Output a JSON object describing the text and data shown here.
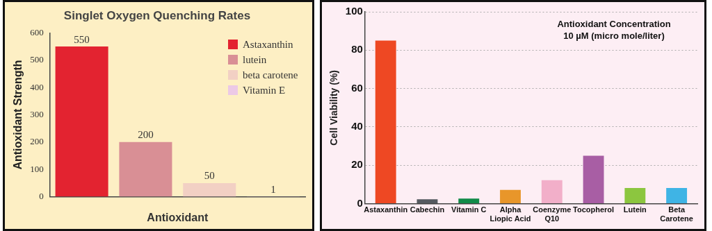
{
  "chart_data": [
    {
      "type": "bar",
      "title": "Singlet Oxygen Quenching Rates",
      "xlabel": "Antioxidant",
      "ylabel": "Antioxidant Strength",
      "categories": [
        null,
        null,
        null,
        null
      ],
      "series": [
        {
          "name": "Astaxanthin",
          "color": "#e32330",
          "values": [
            550,
            null,
            null,
            null
          ]
        },
        {
          "name": "lutein",
          "color": "#d98f95",
          "values": [
            null,
            200,
            null,
            null
          ]
        },
        {
          "name": "beta carotene",
          "color": "#f2d0c4",
          "values": [
            null,
            null,
            50,
            null
          ]
        },
        {
          "name": "Vitamin E",
          "color": "#ecc9e6",
          "values": [
            null,
            null,
            null,
            1
          ]
        }
      ],
      "ylim": [
        0,
        600
      ],
      "yticks": [
        0,
        100,
        200,
        300,
        400,
        500,
        600
      ],
      "grid": false,
      "legend": "top right",
      "data_labels": true
    },
    {
      "type": "bar",
      "ylabel": "Cell Viability (%)",
      "categories": [
        "Astaxanthin",
        "Cabechin",
        "Vitamin C",
        "Alpha\nLiopic Acid",
        "Coenzyme\nQ10",
        "Tocopherol",
        "Lutein",
        "Beta\nCarotene"
      ],
      "values": [
        85,
        2.3,
        2.7,
        7.2,
        12.2,
        25,
        8.2,
        8.2
      ],
      "colors": [
        "#ee4823",
        "#555a60",
        "#108a48",
        "#e8962a",
        "#f2afc9",
        "#a85ea4",
        "#8cc63f",
        "#3fb4e5"
      ],
      "ylim": [
        0,
        100
      ],
      "yticks": [
        0,
        20,
        40,
        60,
        80,
        100
      ],
      "grid": "y",
      "legend": false,
      "annotations": [
        "Antioxidant Concentration\n10 µM (micro mole/liter)"
      ]
    }
  ]
}
